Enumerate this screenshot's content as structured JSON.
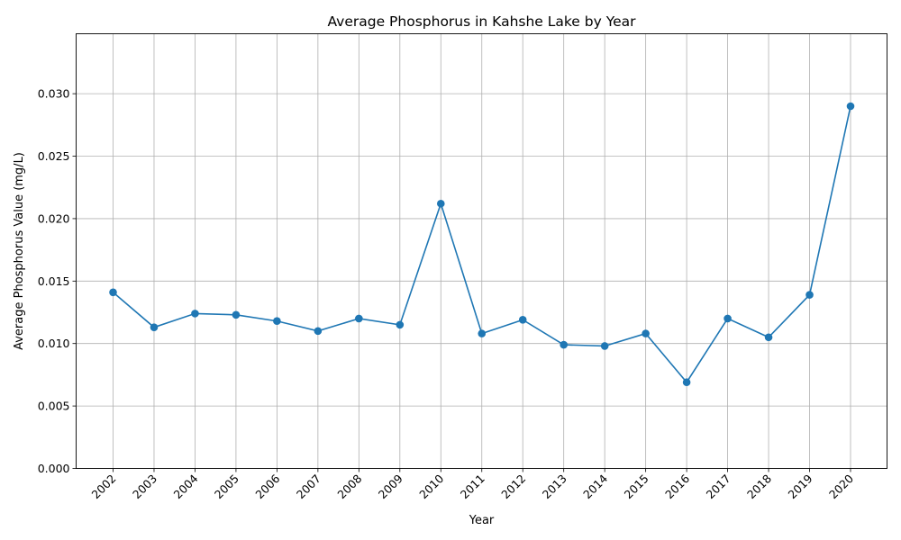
{
  "chart_data": {
    "type": "line",
    "title": "Average Phosphorus in Kahshe Lake by Year",
    "xlabel": "Year",
    "ylabel": "Average Phosphorus Value (mg/L)",
    "categories": [
      "2002",
      "2003",
      "2004",
      "2005",
      "2006",
      "2007",
      "2008",
      "2009",
      "2010",
      "2011",
      "2012",
      "2013",
      "2014",
      "2015",
      "2016",
      "2017",
      "2018",
      "2019",
      "2020"
    ],
    "series": [
      {
        "values": [
          0.0141,
          0.0113,
          0.0124,
          0.0123,
          0.0118,
          0.011,
          0.012,
          0.0115,
          0.0212,
          0.0108,
          0.0119,
          0.0099,
          0.0098,
          0.0108,
          0.0069,
          0.012,
          0.0105,
          0.0139,
          0.029
        ],
        "color": "#1f77b4",
        "marker": "circle"
      }
    ],
    "ylim": [
      0,
      0.0348
    ],
    "yticks": [
      "0.000",
      "0.005",
      "0.010",
      "0.015",
      "0.020",
      "0.025",
      "0.030"
    ],
    "ytick_values": [
      0,
      0.005,
      0.01,
      0.015,
      0.02,
      0.025,
      0.03
    ],
    "grid": true,
    "xtick_rotation": 45
  }
}
